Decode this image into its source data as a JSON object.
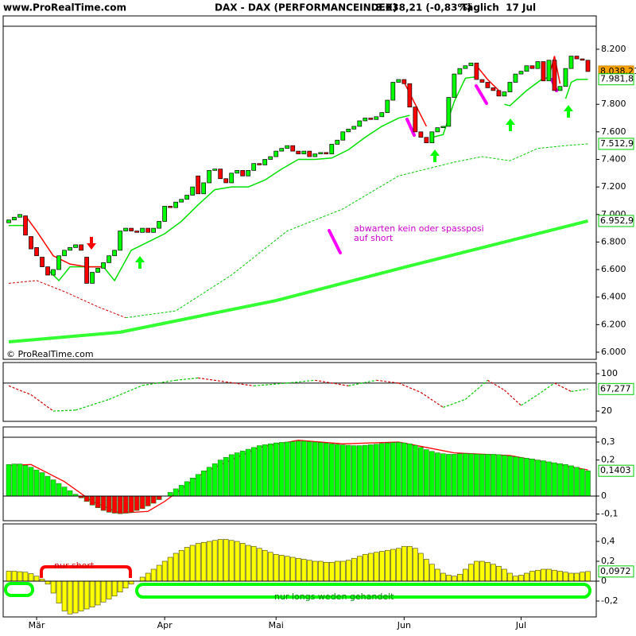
{
  "header": {
    "source": "www.ProRealTime.com",
    "title": "DAX - DAX (PERFORMANCEINDEX)",
    "quote": "8.038,21 (-0,83%)",
    "period": "Täglich  17 Jul"
  },
  "chart_data": [
    {
      "type": "candlestick",
      "watermark": "© ProRealTime.com",
      "annotations": [
        "abwarten kein oder spassposi",
        "auf short"
      ],
      "xlim": [
        -1,
        105.5
      ],
      "ylim": [
        5948,
        8367
      ],
      "up_color": "#00ff00",
      "down_color": "#ff0000",
      "yticks": [
        {
          "value": 6000,
          "label": "6.000"
        },
        {
          "value": 6200,
          "label": "6.200"
        },
        {
          "value": 6400,
          "label": "6.400"
        },
        {
          "value": 6600,
          "label": "6.600"
        },
        {
          "value": 6800,
          "label": "6.800"
        },
        {
          "value": 7000,
          "label": "7.000"
        },
        {
          "value": 7200,
          "label": "7.200"
        },
        {
          "value": 7400,
          "label": "7.400"
        },
        {
          "value": 7600,
          "label": "7.600"
        },
        {
          "value": 7800,
          "label": "7.800"
        },
        {
          "value": 8200,
          "label": "8.200"
        }
      ],
      "open": [
        6940,
        6960,
        6980,
        6990,
        6840,
        6760,
        6690,
        6620,
        6560,
        6600,
        6700,
        6740,
        6760,
        6780,
        6690,
        6500,
        6580,
        6610,
        6650,
        6700,
        6740,
        6880,
        6900,
        6880,
        6870,
        6900,
        6870,
        6900,
        6950,
        7060,
        7050,
        7090,
        7110,
        7140,
        7280,
        7150,
        7230,
        7320,
        7330,
        7260,
        7230,
        7300,
        7320,
        7280,
        7320,
        7370,
        7360,
        7400,
        7420,
        7460,
        7480,
        7500,
        7460,
        7440,
        7460,
        7420,
        7440,
        7450,
        7440,
        7510,
        7540,
        7600,
        7620,
        7640,
        7680,
        7700,
        7690,
        7710,
        7740,
        7830,
        7960,
        7980,
        7950,
        7780,
        7600,
        7560,
        7520,
        7600,
        7630,
        7640,
        7850,
        8020,
        8060,
        8080,
        8100,
        7980,
        7960,
        7920,
        7900,
        7860,
        7890,
        7960,
        8020,
        8040,
        8080,
        8060,
        8110,
        7970,
        8120,
        7900,
        7930,
        8060,
        8150,
        8130,
        8120
      ],
      "close": [
        6960,
        6980,
        7000,
        6850,
        6750,
        6700,
        6620,
        6560,
        6600,
        6700,
        6740,
        6760,
        6780,
        6740,
        6500,
        6580,
        6610,
        6650,
        6700,
        6740,
        6880,
        6900,
        6880,
        6870,
        6900,
        6870,
        6900,
        6950,
        7060,
        7050,
        7090,
        7110,
        7140,
        7200,
        7150,
        7230,
        7320,
        7330,
        7260,
        7230,
        7300,
        7320,
        7280,
        7320,
        7370,
        7360,
        7400,
        7420,
        7460,
        7480,
        7500,
        7460,
        7440,
        7460,
        7420,
        7440,
        7450,
        7440,
        7510,
        7540,
        7600,
        7620,
        7640,
        7680,
        7700,
        7690,
        7710,
        7740,
        7830,
        7960,
        7980,
        7950,
        7780,
        7600,
        7560,
        7520,
        7600,
        7630,
        7640,
        7850,
        8020,
        8060,
        8080,
        8100,
        7980,
        7960,
        7920,
        7900,
        7860,
        7890,
        7960,
        8020,
        8040,
        8080,
        8060,
        8110,
        7970,
        8120,
        7900,
        7930,
        8060,
        8150,
        8130,
        8120,
        8038.21
      ],
      "lines": [
        {
          "color": "#00e000",
          "width": 1.5,
          "x": [
            0,
            3,
            5,
            7,
            9,
            11,
            17,
            19,
            22,
            25,
            28,
            31,
            34,
            37,
            40,
            43,
            46,
            49,
            52,
            55,
            58,
            61,
            64,
            67,
            70,
            72,
            74,
            76,
            78,
            80,
            82,
            84,
            86,
            89,
            90,
            93,
            96,
            97,
            99,
            100,
            101,
            102,
            104
          ],
          "values": [
            6920,
            6920,
            null,
            6600,
            6520,
            6620,
            6620,
            6520,
            6740,
            6800,
            6860,
            6950,
            7070,
            7180,
            7200,
            7200,
            7250,
            7330,
            7400,
            7400,
            7410,
            7470,
            7560,
            7640,
            7700,
            7720,
            null,
            7560,
            7580,
            7820,
            7990,
            8000,
            null,
            7800,
            7790,
            7900,
            7990,
            7990,
            null,
            7840,
            7960,
            7980,
            7981.8
          ]
        },
        {
          "color": "#ff0000",
          "width": 1.5,
          "x": [
            3,
            5,
            8,
            11,
            14,
            17,
            20,
            71,
            73,
            75,
            80,
            84,
            86,
            88,
            90,
            97,
            98,
            99
          ],
          "values": [
            6990,
            6880,
            6700,
            6640,
            6620,
            6620,
            null,
            7960,
            7800,
            7640,
            null,
            8080,
            7980,
            7900,
            null,
            8000,
            8150,
            7950
          ]
        },
        {
          "color": "#cc0000",
          "width": 1,
          "dash": true,
          "x": [
            0,
            5,
            10,
            16,
            21
          ],
          "values": [
            6500,
            6520,
            6440,
            6330,
            6250
          ]
        },
        {
          "color": "#00cc00",
          "width": 1,
          "dash": true,
          "x": [
            21,
            30,
            40,
            50,
            60,
            70,
            75,
            80,
            85,
            90,
            95,
            100,
            104
          ],
          "values": [
            6250,
            6300,
            6560,
            6880,
            7040,
            7280,
            7330,
            7380,
            7420,
            7390,
            7480,
            7500,
            7512.9
          ]
        },
        {
          "color": "#33ff33",
          "width": 4,
          "x": [
            0,
            20,
            48,
            70,
            104
          ],
          "values": [
            6075,
            6145,
            6375,
            6606,
            6952.9
          ]
        }
      ],
      "value_tags": [
        {
          "value": 8038.21,
          "label": "8.038,21",
          "fill": "#ffa500",
          "border": "#cc8400"
        },
        {
          "value": 7981.8,
          "label": "7.981,8",
          "fill": "#ffffff",
          "border": "#00cc00"
        },
        {
          "value": 7512.9,
          "label": "7.512,9",
          "fill": "#ffffff",
          "border": "#00cc00"
        },
        {
          "value": 6952.9,
          "label": "6.952,9",
          "fill": "#ffffff",
          "border": "#00cc00"
        }
      ]
    },
    {
      "type": "line",
      "xlim": [
        -1,
        105.5
      ],
      "ylim": [
        -2,
        124
      ],
      "up_color": "#00cc00",
      "down_color": "#cc0000",
      "yticks": [
        100,
        20
      ],
      "levels": [
        80
      ],
      "x": [
        0,
        4,
        8,
        12,
        18,
        24,
        30,
        34,
        44,
        50,
        55,
        61,
        66,
        70,
        74,
        78,
        82,
        86,
        89,
        92,
        95,
        98,
        101,
        104
      ],
      "values": [
        74,
        55,
        20,
        22,
        45,
        75,
        86,
        91,
        74,
        80,
        86,
        74,
        86,
        80,
        60,
        28,
        45,
        86,
        65,
        32,
        55,
        80,
        62,
        67.277
      ],
      "value_tags": [
        {
          "value": 67.277,
          "label": "67,277",
          "fill": "#ffffff",
          "border": "#00cc00"
        }
      ]
    },
    {
      "type": "bar",
      "xlim": [
        -1,
        105.5
      ],
      "ylim": [
        -0.137,
        0.384
      ],
      "up_color": "#00ff00",
      "down_color": "#ff0000",
      "edge_color": "#208020",
      "yticks": [
        {
          "value": 0.3,
          "label": "0,3"
        },
        {
          "value": 0.2,
          "label": "0,2"
        },
        0,
        {
          "value": -0.1,
          "label": "-0,1"
        }
      ],
      "values": [
        0.175,
        0.178,
        0.178,
        0.17,
        0.16,
        0.145,
        0.13,
        0.11,
        0.09,
        0.07,
        0.05,
        0.03,
        0.01,
        -0.01,
        -0.03,
        -0.05,
        -0.065,
        -0.08,
        -0.09,
        -0.095,
        -0.098,
        -0.095,
        -0.09,
        -0.08,
        -0.07,
        -0.055,
        -0.04,
        -0.02,
        0.0,
        0.02,
        0.04,
        0.06,
        0.08,
        0.1,
        0.12,
        0.14,
        0.16,
        0.18,
        0.2,
        0.215,
        0.23,
        0.24,
        0.25,
        0.26,
        0.27,
        0.28,
        0.285,
        0.29,
        0.295,
        0.298,
        0.3,
        0.302,
        0.305,
        0.305,
        0.302,
        0.3,
        0.297,
        0.294,
        0.29,
        0.287,
        0.284,
        0.282,
        0.28,
        0.28,
        0.282,
        0.285,
        0.288,
        0.292,
        0.295,
        0.297,
        0.298,
        0.295,
        0.29,
        0.282,
        0.27,
        0.258,
        0.248,
        0.24,
        0.235,
        0.232,
        0.232,
        0.235,
        0.236,
        0.235,
        0.233,
        0.232,
        0.232,
        0.232,
        0.23,
        0.226,
        0.222,
        0.218,
        0.214,
        0.21,
        0.206,
        0.2,
        0.196,
        0.19,
        0.185,
        0.18,
        0.175,
        0.168,
        0.16,
        0.15,
        0.1403
      ],
      "lines": [
        {
          "color": "#ff0000",
          "width": 1.3,
          "x": [
            0,
            4,
            10,
            15,
            20,
            25,
            28,
            35,
            45,
            52,
            60,
            70,
            75,
            80,
            90,
            104
          ],
          "values": [
            0.17,
            0.175,
            0.08,
            -0.03,
            -0.095,
            -0.085,
            -0.03,
            0.13,
            0.27,
            0.31,
            0.29,
            0.3,
            0.27,
            0.24,
            0.225,
            0.145
          ]
        }
      ],
      "value_tags": [
        {
          "value": 0.1403,
          "label": "0,1403",
          "fill": "#ffffff",
          "border": "#00cc00"
        }
      ]
    },
    {
      "type": "bar",
      "xlim": [
        -1,
        105.5
      ],
      "ylim": [
        -0.36,
        0.576
      ],
      "up_color": "#ffff00",
      "down_color": "#ffff00",
      "edge_color": "#404000",
      "annotations": [
        "nur short",
        "nur longs weden gehandelt"
      ],
      "yticks": [
        {
          "value": 0.4,
          "label": "0,4"
        },
        {
          "value": 0.2,
          "label": "0,2"
        },
        0,
        {
          "value": -0.2,
          "label": "-0,2"
        }
      ],
      "xticks": [
        {
          "value": 5,
          "label": "Mär"
        },
        {
          "value": 28,
          "label": "Apr"
        },
        {
          "value": 48,
          "label": "Mai"
        },
        {
          "value": 71,
          "label": "Jun"
        },
        {
          "value": 92,
          "label": "Jul"
        }
      ],
      "values": [
        0.1,
        0.1,
        0.095,
        0.09,
        0.075,
        0.05,
        0.02,
        -0.03,
        -0.12,
        -0.22,
        -0.3,
        -0.33,
        -0.32,
        -0.3,
        -0.28,
        -0.26,
        -0.24,
        -0.21,
        -0.18,
        -0.15,
        -0.11,
        -0.07,
        -0.03,
        0.0,
        0.04,
        0.08,
        0.12,
        0.16,
        0.2,
        0.24,
        0.28,
        0.31,
        0.34,
        0.36,
        0.38,
        0.39,
        0.4,
        0.41,
        0.42,
        0.42,
        0.41,
        0.4,
        0.38,
        0.36,
        0.35,
        0.33,
        0.31,
        0.29,
        0.27,
        0.26,
        0.25,
        0.24,
        0.23,
        0.22,
        0.21,
        0.2,
        0.2,
        0.19,
        0.19,
        0.2,
        0.2,
        0.21,
        0.23,
        0.25,
        0.27,
        0.28,
        0.29,
        0.3,
        0.31,
        0.32,
        0.33,
        0.35,
        0.35,
        0.33,
        0.28,
        0.22,
        0.17,
        0.12,
        0.08,
        0.06,
        0.05,
        0.07,
        0.12,
        0.17,
        0.2,
        0.2,
        0.19,
        0.17,
        0.15,
        0.12,
        0.08,
        0.05,
        0.06,
        0.08,
        0.1,
        0.11,
        0.12,
        0.12,
        0.11,
        0.1,
        0.09,
        0.08,
        0.08,
        0.09,
        0.0972
      ],
      "value_tags": [
        {
          "value": 0.0972,
          "label": "0,0972",
          "fill": "#ffffff",
          "border": "#00cc00"
        }
      ]
    }
  ]
}
